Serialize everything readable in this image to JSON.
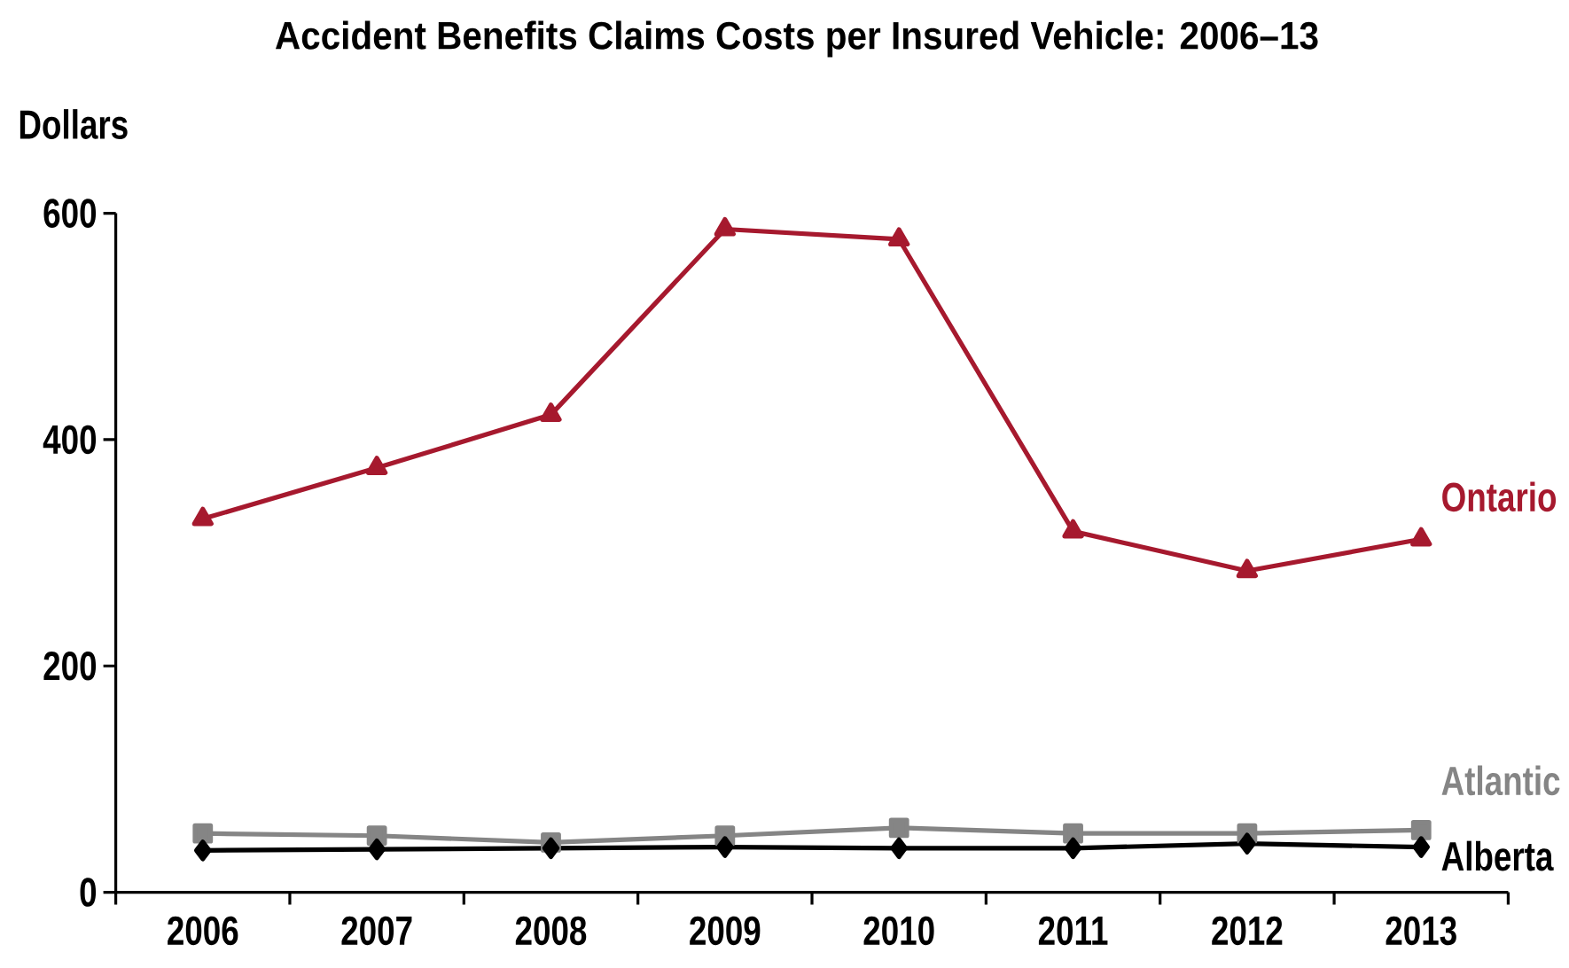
{
  "chart_data": {
    "type": "line",
    "title": "Accident Benefits Claims Costs per Insured Vehicle: 2006–13",
    "ylabel": "Dollars",
    "categories": [
      "2006",
      "2007",
      "2008",
      "2009",
      "2010",
      "2011",
      "2012",
      "2013"
    ],
    "series": [
      {
        "name": "Ontario",
        "color": "#a6192e",
        "marker": "triangle",
        "values": [
          330,
          375,
          422,
          586,
          577,
          319,
          284,
          312
        ]
      },
      {
        "name": "Atlantic",
        "color": "#858585",
        "marker": "square",
        "values": [
          52,
          50,
          44,
          50,
          57,
          52,
          52,
          55
        ]
      },
      {
        "name": "Alberta",
        "color": "#000000",
        "marker": "diamond",
        "values": [
          37,
          38,
          39,
          40,
          39,
          39,
          43,
          40
        ]
      }
    ],
    "ylim": [
      0,
      600
    ],
    "yticks": [
      0,
      200,
      400,
      600
    ]
  }
}
